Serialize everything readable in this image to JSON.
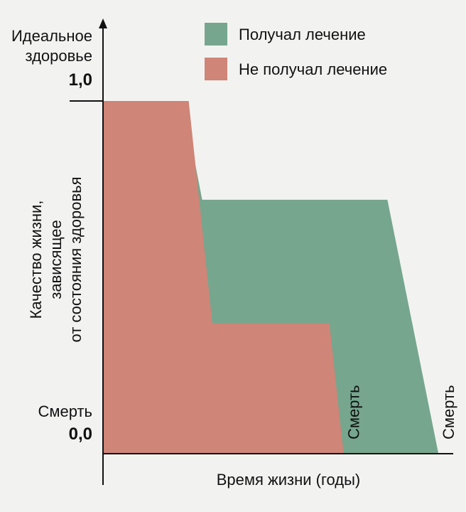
{
  "chart_data": {
    "type": "area",
    "xlabel": "Время жизни (годы)",
    "ylabel_lines": [
      "Качество жизни,",
      "зависящее",
      "от состояния здоровья"
    ],
    "y_top_label_lines": [
      "Идеальное",
      "здоровье"
    ],
    "y_top_value": "1,0",
    "y_bottom_label": "Смерть",
    "y_bottom_value": "0,0",
    "ylim": [
      0,
      1.0
    ],
    "xlim": [
      0,
      100
    ],
    "legend_position": "top-right",
    "series": [
      {
        "name": "Получал лечение",
        "color": "#76a68e",
        "end_label": "Смерть",
        "x": [
          0,
          23.7,
          29.4,
          84.3,
          99.4
        ],
        "y": [
          1.0,
          1.0,
          0.72,
          0.72,
          0.0
        ]
      },
      {
        "name": "Не получал лечение",
        "color": "#cf8577",
        "end_label": "Смерть",
        "x": [
          0,
          25.4,
          32.4,
          67.1,
          71.3
        ],
        "y": [
          1.0,
          1.0,
          0.37,
          0.37,
          0.0
        ]
      }
    ],
    "grid": false
  }
}
